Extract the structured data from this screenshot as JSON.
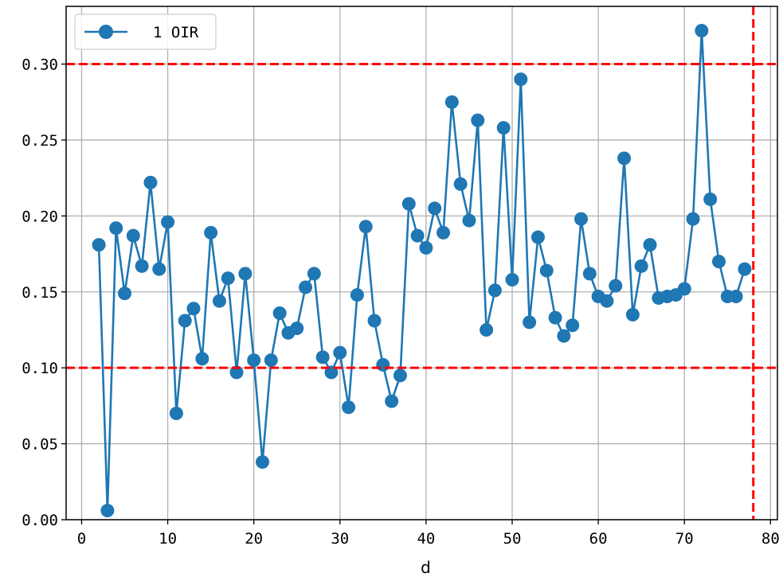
{
  "chart_data": {
    "type": "line",
    "title": "",
    "xlabel": "d",
    "ylabel": "",
    "xlim": [
      -1.8,
      80.8
    ],
    "ylim": [
      0.0,
      0.338
    ],
    "x_ticks": [
      0,
      10,
      20,
      30,
      40,
      50,
      60,
      70,
      80
    ],
    "x_tick_labels": [
      "0",
      "10",
      "20",
      "30",
      "40",
      "50",
      "60",
      "70",
      "80"
    ],
    "y_ticks": [
      0.0,
      0.05,
      0.1,
      0.15,
      0.2,
      0.25,
      0.3
    ],
    "y_tick_labels": [
      "0.00",
      "0.05",
      "0.10",
      "0.15",
      "0.20",
      "0.25",
      "0.30"
    ],
    "grid": true,
    "legend_position": "top-left",
    "series": [
      {
        "name": "1 OIR",
        "color": "#1f77b4",
        "marker": "circle",
        "x": [
          2,
          3,
          4,
          5,
          6,
          7,
          8,
          9,
          10,
          11,
          12,
          13,
          14,
          15,
          16,
          17,
          18,
          19,
          20,
          21,
          22,
          23,
          24,
          25,
          26,
          27,
          28,
          29,
          30,
          31,
          32,
          33,
          34,
          35,
          36,
          37,
          38,
          39,
          40,
          41,
          42,
          43,
          44,
          45,
          46,
          47,
          48,
          49,
          50,
          51,
          52,
          53,
          54,
          55,
          56,
          57,
          58,
          59,
          60,
          61,
          62,
          63,
          64,
          65,
          66,
          67,
          68,
          69,
          70,
          71,
          72,
          73,
          74,
          75,
          76,
          77
        ],
        "y": [
          0.181,
          0.006,
          0.192,
          0.149,
          0.187,
          0.167,
          0.222,
          0.165,
          0.196,
          0.07,
          0.131,
          0.139,
          0.106,
          0.189,
          0.144,
          0.159,
          0.097,
          0.162,
          0.105,
          0.038,
          0.105,
          0.136,
          0.123,
          0.126,
          0.153,
          0.162,
          0.107,
          0.097,
          0.11,
          0.074,
          0.148,
          0.193,
          0.131,
          0.102,
          0.078,
          0.095,
          0.208,
          0.187,
          0.179,
          0.205,
          0.189,
          0.275,
          0.221,
          0.197,
          0.263,
          0.125,
          0.151,
          0.258,
          0.158,
          0.29,
          0.13,
          0.186,
          0.164,
          0.133,
          0.121,
          0.128,
          0.198,
          0.162,
          0.147,
          0.144,
          0.154,
          0.238,
          0.135,
          0.167,
          0.181,
          0.146,
          0.147,
          0.148,
          0.152,
          0.198,
          0.322,
          0.211,
          0.17,
          0.147,
          0.147,
          0.165
        ]
      }
    ],
    "reference_lines": [
      {
        "axis": "y",
        "value": 0.3,
        "color": "#ff0000",
        "style": "dashed"
      },
      {
        "axis": "y",
        "value": 0.1,
        "color": "#ff0000",
        "style": "dashed"
      },
      {
        "axis": "x",
        "value": 78,
        "color": "#ff0000",
        "style": "dashed"
      }
    ]
  }
}
